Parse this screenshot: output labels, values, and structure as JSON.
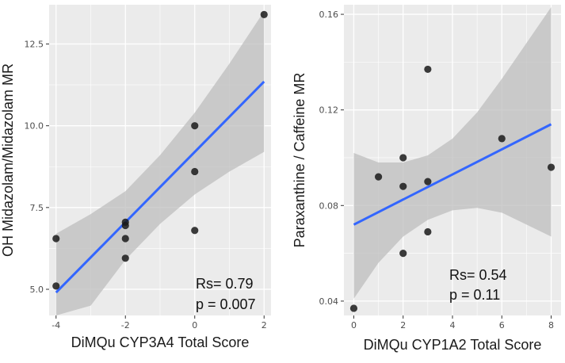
{
  "colors": {
    "panel_bg": "#ebebeb",
    "grid": "#ffffff",
    "band": "#bdbdbd",
    "line": "#3366ff",
    "point": "#1a1a1a"
  },
  "chart_data": [
    {
      "type": "scatter",
      "xlabel": "DiMQu CYP3A4 Total Score",
      "ylabel": "OH Midazolam/Midazolam MR",
      "xlim": [
        -4.2,
        2.2
      ],
      "ylim": [
        4.2,
        13.7
      ],
      "xticks": [
        -4,
        -2,
        0,
        2
      ],
      "xtick_labels": [
        "-4",
        "-2",
        "0",
        "2"
      ],
      "yticks": [
        5.0,
        7.5,
        10.0,
        12.5
      ],
      "ytick_labels": [
        "5.0",
        "7.5",
        "10.0",
        "12.5"
      ],
      "points": [
        {
          "x": -4,
          "y": 6.55
        },
        {
          "x": -4,
          "y": 5.1
        },
        {
          "x": -2,
          "y": 7.05
        },
        {
          "x": -2,
          "y": 6.95
        },
        {
          "x": -2,
          "y": 6.55
        },
        {
          "x": -2,
          "y": 5.95
        },
        {
          "x": 0,
          "y": 10.0
        },
        {
          "x": 0,
          "y": 8.6
        },
        {
          "x": 0,
          "y": 6.8
        },
        {
          "x": 2,
          "y": 13.4
        }
      ],
      "fit": {
        "x": [
          -4,
          2
        ],
        "y": [
          4.9,
          11.35
        ]
      },
      "band": [
        {
          "x": -4,
          "lo": 3.1,
          "hi": 6.7
        },
        {
          "x": -3,
          "lo": 4.5,
          "hi": 7.3
        },
        {
          "x": -2,
          "lo": 5.9,
          "hi": 8.0
        },
        {
          "x": -1,
          "lo": 7.0,
          "hi": 9.1
        },
        {
          "x": 0,
          "lo": 7.9,
          "hi": 10.4
        },
        {
          "x": 1,
          "lo": 8.6,
          "hi": 11.9
        },
        {
          "x": 2,
          "lo": 9.2,
          "hi": 13.5
        }
      ],
      "stats": {
        "rs": "Rs= 0.79",
        "p": "p = 0.007"
      }
    },
    {
      "type": "scatter",
      "xlabel": "DiMQu CYP1A2 Total Score",
      "ylabel": "Paraxanthine / Caffeine MR",
      "xlim": [
        -0.4,
        8.4
      ],
      "ylim": [
        0.034,
        0.164
      ],
      "xticks": [
        0,
        2,
        4,
        6,
        8
      ],
      "xtick_labels": [
        "0",
        "2",
        "4",
        "6",
        "8"
      ],
      "yticks": [
        0.04,
        0.08,
        0.12,
        0.16
      ],
      "ytick_labels": [
        "0.04",
        "0.08",
        "0.12",
        "0.16"
      ],
      "points": [
        {
          "x": 0,
          "y": 0.037
        },
        {
          "x": 1,
          "y": 0.092
        },
        {
          "x": 2,
          "y": 0.1
        },
        {
          "x": 2,
          "y": 0.088
        },
        {
          "x": 2,
          "y": 0.06
        },
        {
          "x": 3,
          "y": 0.137
        },
        {
          "x": 3,
          "y": 0.09
        },
        {
          "x": 3,
          "y": 0.069
        },
        {
          "x": 6,
          "y": 0.108
        },
        {
          "x": 8,
          "y": 0.096
        }
      ],
      "fit": {
        "x": [
          0,
          8
        ],
        "y": [
          0.072,
          0.114
        ]
      },
      "band": [
        {
          "x": 0,
          "lo": 0.041,
          "hi": 0.102
        },
        {
          "x": 1,
          "lo": 0.056,
          "hi": 0.098
        },
        {
          "x": 2,
          "lo": 0.067,
          "hi": 0.098
        },
        {
          "x": 3,
          "lo": 0.074,
          "hi": 0.101
        },
        {
          "x": 4,
          "lo": 0.078,
          "hi": 0.108
        },
        {
          "x": 5,
          "lo": 0.079,
          "hi": 0.119
        },
        {
          "x": 6,
          "lo": 0.077,
          "hi": 0.133
        },
        {
          "x": 7,
          "lo": 0.072,
          "hi": 0.148
        },
        {
          "x": 8,
          "lo": 0.067,
          "hi": 0.163
        }
      ],
      "stats": {
        "rs": "Rs= 0.54",
        "p": "p = 0.11"
      }
    }
  ]
}
